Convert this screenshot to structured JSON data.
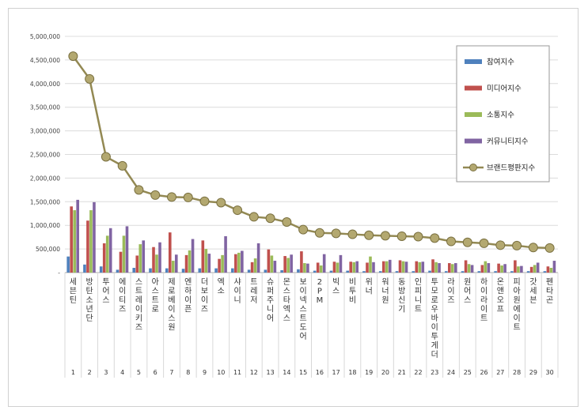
{
  "chart_data": {
    "type": "bar",
    "title": "",
    "xlabel": "",
    "ylabel": "",
    "ylim": [
      0,
      5000000
    ],
    "yticks": [
      "-",
      "500,000",
      "1,000,000",
      "1,500,000",
      "2,000,000",
      "2,500,000",
      "3,000,000",
      "3,500,000",
      "4,000,000",
      "4,500,000",
      "5,000,000"
    ],
    "grid": true,
    "legend_position": "right",
    "ranks": [
      "1",
      "2",
      "3",
      "4",
      "5",
      "6",
      "7",
      "8",
      "9",
      "10",
      "11",
      "12",
      "13",
      "14",
      "15",
      "16",
      "17",
      "18",
      "19",
      "20",
      "21",
      "22",
      "23",
      "24",
      "25",
      "26",
      "27",
      "28",
      "29",
      "30"
    ],
    "categories": [
      "세븐틴",
      "방탄소년단",
      "투어스",
      "에이티즈",
      "스트레이키즈",
      "아스트로",
      "제로베이스원",
      "엔하이픈",
      "더보이즈",
      "엑소",
      "샤이니",
      "트레저",
      "슈퍼주니어",
      "몬스타엑스",
      "보이넥스트도어",
      "2PM",
      "빅스",
      "비투비",
      "위너",
      "워너원",
      "동방신기",
      "인피니트",
      "투모로우바이투게더",
      "라이즈",
      "원어스",
      "하이라이트",
      "온앤오프",
      "피아원에이트",
      "갓세븐",
      "펜타곤"
    ],
    "series": [
      {
        "name": "참여지수",
        "color": "#4f81bd",
        "type": "bar",
        "values": [
          340000,
          170000,
          130000,
          60000,
          100000,
          90000,
          90000,
          80000,
          90000,
          90000,
          90000,
          60000,
          60000,
          50000,
          70000,
          40000,
          40000,
          40000,
          30000,
          30000,
          30000,
          30000,
          40000,
          30000,
          30000,
          30000,
          30000,
          30000,
          30000,
          30000
        ]
      },
      {
        "name": "미디어지수",
        "color": "#c0504d",
        "type": "bar",
        "values": [
          1400000,
          1100000,
          620000,
          440000,
          360000,
          540000,
          850000,
          370000,
          680000,
          290000,
          390000,
          220000,
          490000,
          350000,
          450000,
          210000,
          230000,
          230000,
          210000,
          240000,
          260000,
          240000,
          280000,
          200000,
          260000,
          160000,
          190000,
          260000,
          120000,
          130000
        ]
      },
      {
        "name": "소통지수",
        "color": "#9bbb59",
        "type": "bar",
        "values": [
          1320000,
          1320000,
          780000,
          780000,
          600000,
          380000,
          250000,
          470000,
          500000,
          370000,
          420000,
          300000,
          360000,
          310000,
          200000,
          150000,
          210000,
          220000,
          340000,
          240000,
          240000,
          220000,
          220000,
          180000,
          180000,
          240000,
          150000,
          130000,
          160000,
          100000
        ]
      },
      {
        "name": "커뮤니티지수",
        "color": "#8064a2",
        "type": "bar",
        "values": [
          1540000,
          1490000,
          940000,
          980000,
          680000,
          640000,
          380000,
          710000,
          400000,
          770000,
          460000,
          620000,
          250000,
          380000,
          190000,
          390000,
          370000,
          240000,
          220000,
          270000,
          230000,
          230000,
          200000,
          200000,
          160000,
          200000,
          180000,
          140000,
          210000,
          250000
        ]
      },
      {
        "name": "브랜드평판지수",
        "color": "#938953",
        "type": "line",
        "values": [
          4580000,
          4100000,
          2450000,
          2260000,
          1750000,
          1640000,
          1600000,
          1590000,
          1510000,
          1480000,
          1320000,
          1180000,
          1150000,
          1070000,
          910000,
          840000,
          830000,
          810000,
          790000,
          780000,
          770000,
          760000,
          730000,
          660000,
          640000,
          620000,
          580000,
          570000,
          530000,
          520000
        ]
      }
    ]
  }
}
